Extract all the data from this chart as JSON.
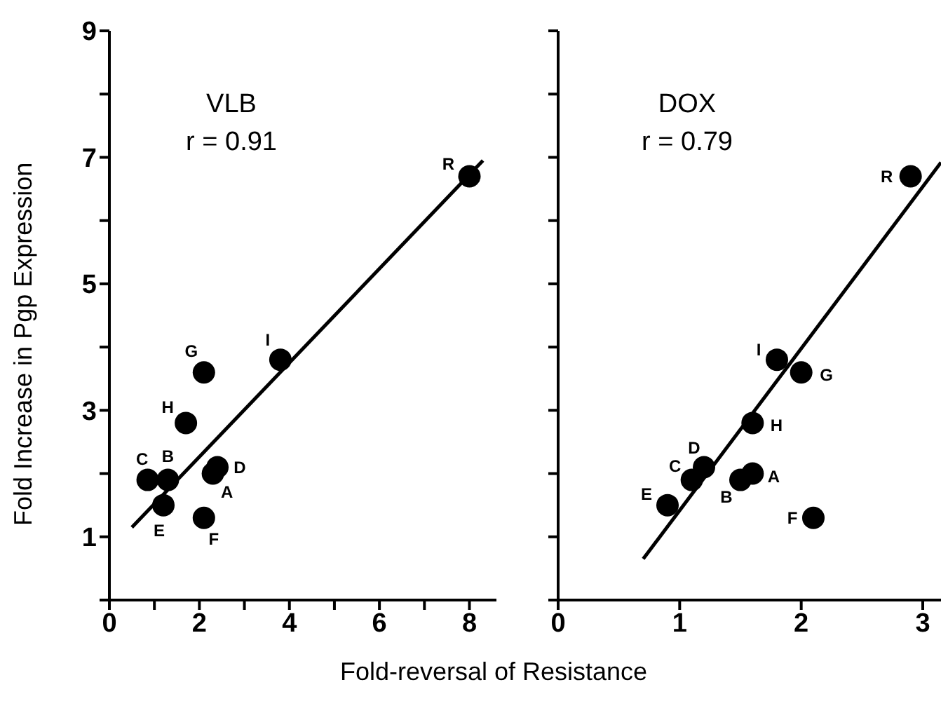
{
  "chart_data": [
    {
      "type": "scatter",
      "ylabel": "Fold Increase in Pgp Expression",
      "xlabel": "Fold-reversal of Resistance",
      "xlim": [
        0,
        8.6
      ],
      "ylim": [
        0,
        9
      ],
      "xticks": [
        0,
        {
          "value": 1,
          "label": null
        },
        2,
        {
          "value": 3,
          "label": null
        },
        4,
        {
          "value": 5,
          "label": null
        },
        6,
        {
          "value": 7,
          "label": null
        },
        8
      ],
      "yticks": [
        {
          "value": 0,
          "label": null
        },
        1,
        {
          "value": 2,
          "label": null
        },
        3,
        {
          "value": 4,
          "label": null
        },
        5,
        {
          "value": 6,
          "label": null
        },
        7,
        {
          "value": 8,
          "label": null
        },
        9
      ],
      "grid": false,
      "series": [
        {
          "color": "#000000",
          "marker": "circle",
          "x": [
            2.3,
            1.3,
            0.85,
            2.4,
            1.2,
            2.1,
            2.1,
            1.7,
            3.8,
            8.0
          ],
          "values": [
            2.0,
            1.9,
            1.9,
            2.1,
            1.5,
            1.3,
            3.6,
            2.8,
            3.8,
            6.7
          ]
        },
        {
          "type": "line",
          "color": "#000000",
          "marker": "none",
          "x": [
            0.5,
            8.3
          ],
          "values": [
            1.15,
            6.95
          ]
        }
      ],
      "annotations": [
        "VLB",
        "r = 0.91",
        {
          "text": "A",
          "x": 2.3,
          "y": 2.0
        },
        {
          "text": "B",
          "x": 1.3,
          "y": 1.9
        },
        {
          "text": "C",
          "x": 0.85,
          "y": 1.9
        },
        {
          "text": "D",
          "x": 2.4,
          "y": 2.1
        },
        {
          "text": "E",
          "x": 1.2,
          "y": 1.5
        },
        {
          "text": "F",
          "x": 2.1,
          "y": 1.3
        },
        {
          "text": "G",
          "x": 2.1,
          "y": 3.6
        },
        {
          "text": "H",
          "x": 1.7,
          "y": 2.8
        },
        {
          "text": "I",
          "x": 3.8,
          "y": 3.8
        },
        {
          "text": "R",
          "x": 8.0,
          "y": 6.7
        }
      ]
    },
    {
      "type": "scatter",
      "xlim": [
        0,
        3.15
      ],
      "ylim": [
        0,
        9
      ],
      "xticks": [
        0,
        1,
        2,
        3
      ],
      "yticks": [
        {
          "value": 0,
          "label": null
        },
        {
          "value": 1,
          "label": null
        },
        {
          "value": 2,
          "label": null
        },
        {
          "value": 3,
          "label": null
        },
        {
          "value": 4,
          "label": null
        },
        {
          "value": 5,
          "label": null
        },
        {
          "value": 6,
          "label": null
        },
        {
          "value": 7,
          "label": null
        },
        {
          "value": 8,
          "label": null
        },
        {
          "value": 9,
          "label": null
        }
      ],
      "tick_labels": "x",
      "grid": false,
      "series": [
        {
          "color": "#000000",
          "marker": "circle",
          "x": [
            1.6,
            1.5,
            1.1,
            1.2,
            0.9,
            2.1,
            2.0,
            1.6,
            1.8,
            2.9
          ],
          "values": [
            2.0,
            1.9,
            1.9,
            2.1,
            1.5,
            1.3,
            3.6,
            2.8,
            3.8,
            6.7
          ]
        },
        {
          "type": "line",
          "color": "#000000",
          "marker": "none",
          "x": [
            0.7,
            3.15
          ],
          "values": [
            0.65,
            6.92
          ]
        }
      ],
      "annotations": [
        "DOX",
        "r = 0.79",
        {
          "text": "A",
          "x": 1.6,
          "y": 2.0
        },
        {
          "text": "B",
          "x": 1.5,
          "y": 1.9
        },
        {
          "text": "C",
          "x": 1.1,
          "y": 1.9
        },
        {
          "text": "D",
          "x": 1.2,
          "y": 2.1
        },
        {
          "text": "E",
          "x": 0.9,
          "y": 1.5
        },
        {
          "text": "F",
          "x": 2.1,
          "y": 1.3
        },
        {
          "text": "G",
          "x": 2.0,
          "y": 3.6
        },
        {
          "text": "H",
          "x": 1.6,
          "y": 2.8
        },
        {
          "text": "I",
          "x": 1.8,
          "y": 3.8
        },
        {
          "text": "R",
          "x": 2.9,
          "y": 6.7
        }
      ]
    }
  ]
}
